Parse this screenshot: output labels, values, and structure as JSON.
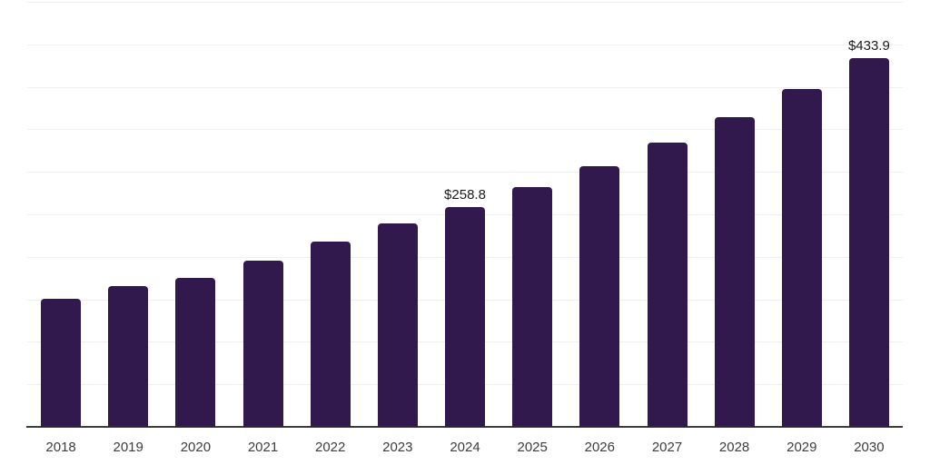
{
  "chart_data": {
    "type": "bar",
    "title": "",
    "xlabel": "",
    "ylabel": "",
    "categories": [
      "2018",
      "2019",
      "2020",
      "2021",
      "2022",
      "2023",
      "2024",
      "2025",
      "2026",
      "2027",
      "2028",
      "2029",
      "2030"
    ],
    "values": [
      150.6,
      165.6,
      175.2,
      195.5,
      218.0,
      239.3,
      258.8,
      282.1,
      306.6,
      334.4,
      364.3,
      397.4,
      433.9
    ],
    "ylim": [
      0,
      500
    ],
    "grid_step": 50,
    "grid": "horizontal",
    "legend_position": "none",
    "point_labels": [
      {
        "category": "2024",
        "text": "$258.8"
      },
      {
        "category": "2030",
        "text": "$433.9"
      }
    ],
    "style": {
      "bar_color": "#31184d",
      "grid_color": "#efefef",
      "axis_color": "#3d3d3d",
      "tick_color": "#3d3d3d",
      "value_label_color": "#1a1a1a"
    }
  }
}
